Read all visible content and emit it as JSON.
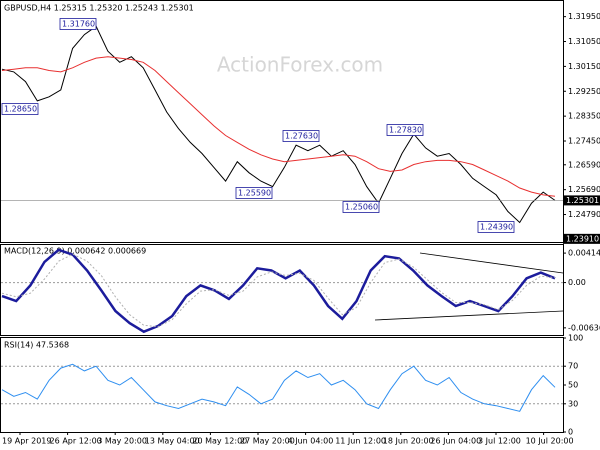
{
  "chart_data": [
    {
      "type": "line",
      "title": "GBPUSD,H4  1.25315 1.25320 1.25243 1.25301",
      "watermark": "ActionForex.com",
      "ylim": [
        1.2376,
        1.3248
      ],
      "yticks": [
        {
          "value": 1.3195,
          "label": "1.31950"
        },
        {
          "value": 1.3105,
          "label": "1.31050"
        },
        {
          "value": 1.3015,
          "label": "1.30150"
        },
        {
          "value": 1.2925,
          "label": "1.29250"
        },
        {
          "value": 1.2835,
          "label": "1.28350"
        },
        {
          "value": 1.2745,
          "label": "1.27450"
        },
        {
          "value": 1.2659,
          "label": "1.26590"
        },
        {
          "value": 1.2569,
          "label": "1.25690"
        },
        {
          "value": 1.2479,
          "label": "1.24790"
        }
      ],
      "current_price": {
        "value": 1.25301,
        "label": "1.25301"
      },
      "level": {
        "value": 1.2391,
        "label": "1.23910"
      },
      "annotations": [
        "1.31760",
        "1.28650",
        "1.27630",
        "1.27830",
        "1.25590",
        "1.25060",
        "1.24390"
      ],
      "series": [
        {
          "color": "#000000",
          "values": [
            1.3005,
            1.2995,
            1.296,
            1.289,
            1.2905,
            1.293,
            1.308,
            1.313,
            1.316,
            1.307,
            1.303,
            1.305,
            1.301,
            1.293,
            1.285,
            1.279,
            1.274,
            1.27,
            1.265,
            1.26,
            1.267,
            1.263,
            1.26,
            1.258,
            1.265,
            1.273,
            1.271,
            1.273,
            1.269,
            1.271,
            1.266,
            1.258,
            1.252,
            1.261,
            1.27,
            1.277,
            1.272,
            1.269,
            1.27,
            1.266,
            1.261,
            1.258,
            1.255,
            1.249,
            1.245,
            1.252,
            1.256,
            1.253
          ]
        },
        {
          "color": "#e83030",
          "values": [
            1.3,
            1.3005,
            1.301,
            1.301,
            1.3,
            1.2995,
            1.301,
            1.303,
            1.3045,
            1.305,
            1.3045,
            1.304,
            1.303,
            1.3,
            1.296,
            1.292,
            1.288,
            1.284,
            1.28,
            1.2765,
            1.274,
            1.2715,
            1.2695,
            1.268,
            1.267,
            1.2675,
            1.268,
            1.2685,
            1.269,
            1.2695,
            1.269,
            1.267,
            1.2645,
            1.2635,
            1.264,
            1.266,
            1.267,
            1.2675,
            1.2675,
            1.267,
            1.266,
            1.264,
            1.262,
            1.26,
            1.2575,
            1.256,
            1.255,
            1.2545
          ]
        }
      ]
    },
    {
      "type": "line",
      "title": "MACD(12,26,9) 0.000642 0.000669",
      "ylim": [
        -0.00737,
        0.00528
      ],
      "yticks": [
        0.004141,
        {
          "value": 0,
          "label": "0.00"
        },
        -0.006365
      ],
      "series": [
        {
          "color": "#1c1c9c",
          "values": [
            -0.0019,
            -0.0026,
            -0.0004,
            0.0029,
            0.0046,
            0.0039,
            0.0017,
            -0.0011,
            -0.004,
            -0.0057,
            -0.0069,
            -0.0061,
            -0.0047,
            -0.0019,
            -0.0004,
            -0.0011,
            -0.0023,
            -0.0004,
            0.002,
            0.0017,
            0.0006,
            0.0017,
            -0.0004,
            -0.0033,
            -0.0051,
            -0.0026,
            0.0017,
            0.0037,
            0.0034,
            0.0017,
            -0.0004,
            -0.0019,
            -0.0033,
            -0.0026,
            -0.0033,
            -0.004,
            -0.0019,
            0.0006,
            0.0014,
            0.0006
          ]
        },
        {
          "color": "#b0b0b0",
          "values": [
            -0.0015,
            -0.002,
            -0.0015,
            0.0005,
            0.003,
            0.004,
            0.003,
            0.001,
            -0.002,
            -0.0045,
            -0.006,
            -0.0062,
            -0.0052,
            -0.003,
            -0.0012,
            -0.001,
            -0.0018,
            -0.0012,
            0.0008,
            0.0015,
            0.001,
            0.0013,
            0.0003,
            -0.0022,
            -0.0045,
            -0.0035,
            0.0,
            0.0028,
            0.0033,
            0.0022,
            0.0004,
            -0.0014,
            -0.0028,
            -0.0028,
            -0.0031,
            -0.0038,
            -0.0025,
            -0.0004,
            0.0009,
            0.0007
          ]
        }
      ]
    },
    {
      "type": "line",
      "title": "RSI(14) 47.5368",
      "ylim": [
        0,
        100
      ],
      "yticks": [
        100,
        70,
        50,
        30,
        0
      ],
      "xtick_labels": [
        "19 Apr 2019",
        "26 Apr 12:00",
        "3 May 20:00",
        "13 May 04:00",
        "20 May 12:00",
        "27 May 20:00",
        "4 Jun 04:00",
        "11 Jun 12:00",
        "18 Jun 20:00",
        "26 Jun 04:00",
        "3 Jul 12:00",
        "10 Jul 20:00"
      ],
      "series": [
        {
          "color": "#2f8ff0",
          "values": [
            45,
            38,
            42,
            35,
            55,
            68,
            72,
            65,
            70,
            55,
            50,
            58,
            45,
            32,
            28,
            25,
            30,
            35,
            32,
            28,
            48,
            40,
            30,
            35,
            55,
            65,
            58,
            62,
            50,
            55,
            45,
            30,
            25,
            45,
            62,
            70,
            55,
            50,
            58,
            42,
            35,
            30,
            28,
            25,
            22,
            45,
            60,
            47.5368
          ]
        }
      ]
    }
  ]
}
